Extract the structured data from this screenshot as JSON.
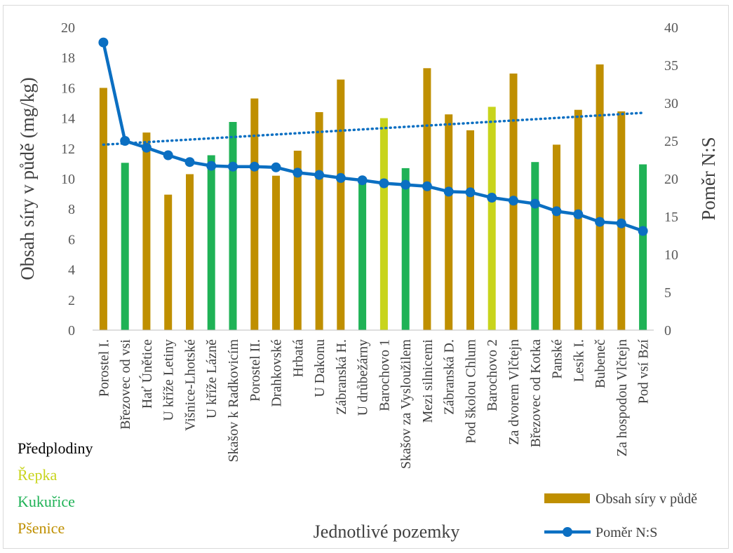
{
  "chart_data": {
    "type": "bar",
    "categories": [
      "Porostel I.",
      "Březovec od vsi",
      "Hať Únětice",
      "U kříže Letiny",
      "Višnice-Lhotské",
      "U kříže Lázně",
      "Skašov k Radkovicím",
      "Porostel II.",
      "Drahkovské",
      "Hrbatá",
      "U Dakonu",
      "Zábranská H.",
      "U drůbežárny",
      "Barochovo 1",
      "Skašov za Vysloužilem",
      "Mezi silnicemi",
      "Zábranská D.",
      "Pod školou Chlum",
      "Barochovo 2",
      "Za dvorem Vlčtejn",
      "Březovec od Kotka",
      "Panské",
      "Lesík I.",
      "Bubeneč",
      "Za hospodou Vlčtejn",
      "Pod vsí Bzí"
    ],
    "series": [
      {
        "name": "Obsah síry v půdě",
        "type": "bar",
        "axis": "left",
        "values": [
          16.0,
          11.05,
          13.05,
          8.95,
          10.3,
          11.55,
          13.75,
          15.3,
          10.2,
          11.85,
          14.4,
          16.55,
          9.9,
          14.0,
          10.7,
          17.3,
          14.25,
          13.2,
          14.75,
          16.95,
          11.1,
          12.25,
          14.55,
          17.55,
          14.45,
          10.95
        ],
        "crop_group": [
          "wheat",
          "maize",
          "wheat",
          "wheat",
          "wheat",
          "maize",
          "maize",
          "wheat",
          "wheat",
          "wheat",
          "wheat",
          "wheat",
          "maize",
          "rapeseed",
          "maize",
          "wheat",
          "wheat",
          "wheat",
          "rapeseed",
          "wheat",
          "maize",
          "wheat",
          "wheat",
          "wheat",
          "wheat",
          "maize"
        ]
      },
      {
        "name": "Poměr N:S",
        "type": "line",
        "axis": "right",
        "values": [
          38.0,
          25.0,
          24.1,
          23.1,
          22.2,
          21.7,
          21.6,
          21.6,
          21.5,
          20.8,
          20.5,
          20.1,
          19.8,
          19.4,
          19.2,
          19.0,
          18.3,
          18.2,
          17.5,
          17.1,
          16.7,
          15.7,
          15.3,
          14.3,
          14.1,
          13.1
        ]
      }
    ],
    "trendline": {
      "series": "Poměr N:S",
      "start": 24.5,
      "end": 28.7
    },
    "ylabel": "Obsah síry v půdě (mg/kg)",
    "y2label": "Poměr N:S",
    "xlabel": "Jednotlivé pozemky",
    "ylim": [
      0,
      20
    ],
    "y2lim": [
      0,
      40
    ],
    "yticks": [
      0,
      2,
      4,
      6,
      8,
      10,
      12,
      14,
      16,
      18,
      20
    ],
    "y2ticks": [
      0,
      5,
      10,
      15,
      20,
      25,
      30,
      35,
      40
    ],
    "grid": false,
    "legend_position": "bottom-right"
  },
  "side_legend": {
    "title": "Předplodiny",
    "items": [
      {
        "key": "rapeseed",
        "label": "Řepka",
        "color": "#c8d41c"
      },
      {
        "key": "maize",
        "label": "Kukuřice",
        "color": "#1fb256"
      },
      {
        "key": "wheat",
        "label": "Pšenice",
        "color": "#bf8f00"
      }
    ]
  },
  "colors": {
    "line": "#0b6fc2",
    "trend": "#0b6fc2",
    "legend_bar": "#bf8f00",
    "axis": "#bfbfbf"
  }
}
